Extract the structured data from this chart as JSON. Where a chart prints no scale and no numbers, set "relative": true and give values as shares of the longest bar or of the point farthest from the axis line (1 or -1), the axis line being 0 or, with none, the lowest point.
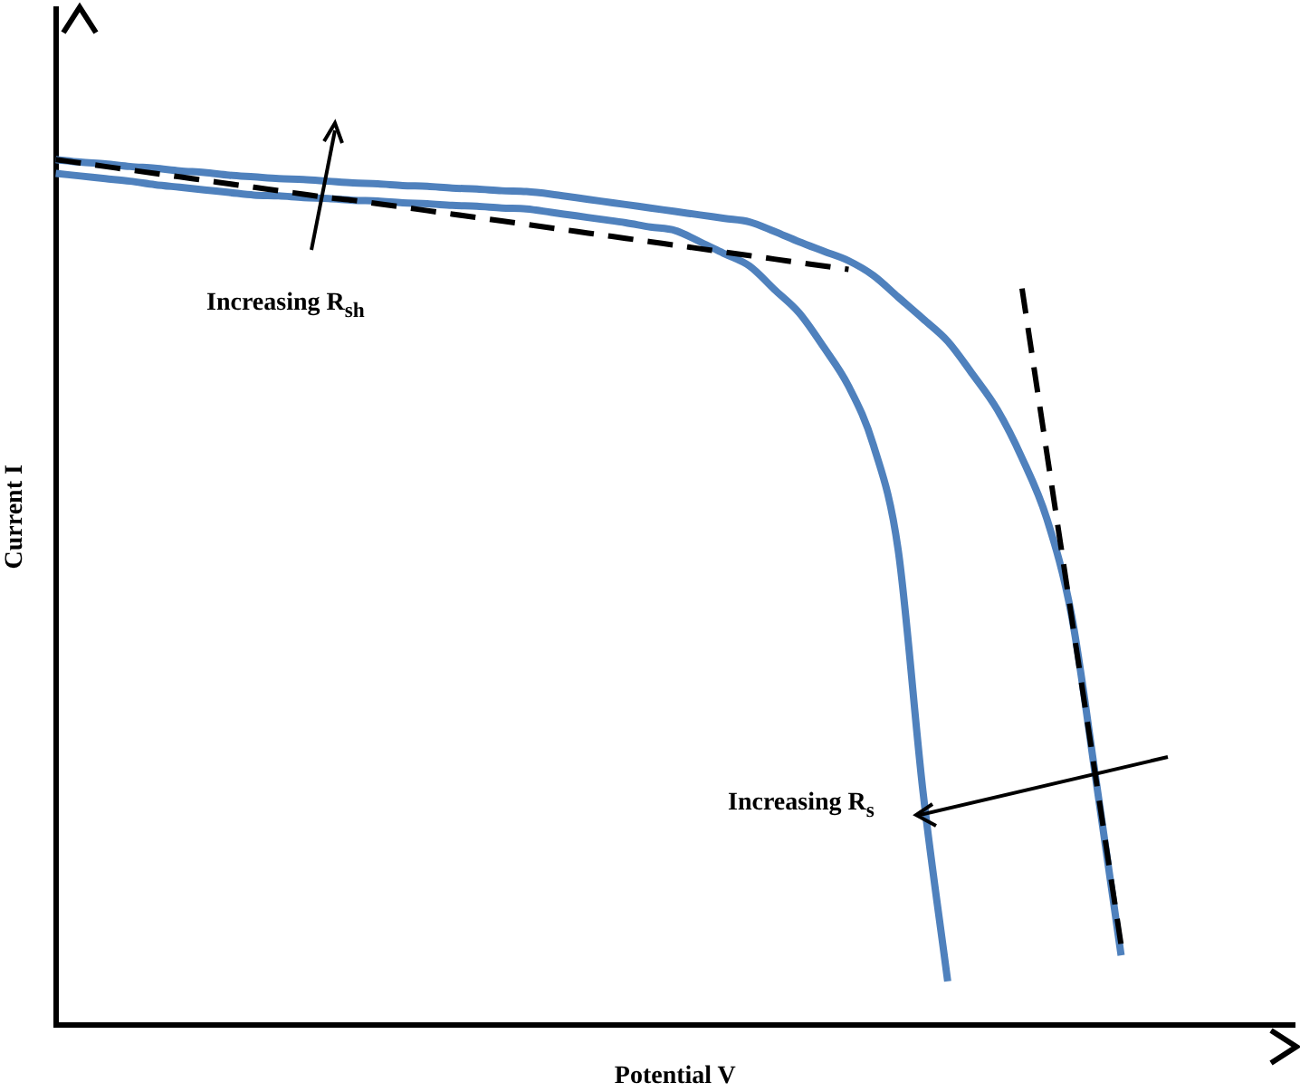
{
  "chart_data": {
    "type": "line",
    "relative": true,
    "xlabel": "Potential V",
    "ylabel": "Current I",
    "grid": false,
    "legend": false,
    "marker": "none",
    "categories": [
      null,
      null,
      null,
      null,
      null,
      null,
      null,
      null,
      null,
      null,
      null,
      null,
      null,
      null,
      null,
      null,
      null,
      null,
      null,
      null,
      null,
      null,
      null,
      null,
      null,
      null,
      null,
      null,
      null,
      null,
      null,
      null,
      null,
      null,
      null,
      null,
      null,
      null,
      null,
      null,
      null,
      null,
      null,
      null,
      null,
      null,
      null,
      null,
      null,
      null,
      null
    ],
    "annotations": [
      "Increasing R$_{sh}$",
      "Increasing R$_{s}$"
    ],
    "series": [
      {
        "color": "#4f81bd",
        "line_style": "solid",
        "values": [
          1.0,
          0.997,
          0.995,
          0.992,
          0.99,
          0.987,
          0.985,
          0.982,
          0.98,
          0.978,
          0.977,
          0.975,
          0.973,
          0.972,
          0.97,
          0.969,
          0.967,
          0.966,
          0.964,
          0.963,
          0.96,
          0.956,
          0.952,
          0.948,
          0.944,
          0.94,
          0.936,
          0.932,
          0.928,
          0.917,
          0.905,
          0.894,
          0.883,
          0.866,
          0.841,
          0.816,
          0.79,
          0.752,
          0.711,
          0.655,
          0.585,
          0.473,
          0.28,
          0.08,
          null,
          null,
          null,
          null,
          null,
          null,
          null
        ]
      },
      {
        "color": "#4f81bd",
        "line_style": "solid",
        "values": [
          0.984,
          0.981,
          0.978,
          0.975,
          0.971,
          0.968,
          0.965,
          0.962,
          0.959,
          0.958,
          0.956,
          0.955,
          0.953,
          0.952,
          0.95,
          0.949,
          0.947,
          0.946,
          0.944,
          0.943,
          0.939,
          0.935,
          0.931,
          0.927,
          0.922,
          0.918,
          0.905,
          0.891,
          0.877,
          0.85,
          0.823,
          0.783,
          0.738,
          0.67,
          0.549,
          0.27,
          0.05,
          null,
          null,
          null,
          null,
          null,
          null,
          null,
          null,
          null,
          null,
          null,
          null,
          null,
          null
        ]
      },
      {
        "color": "#000000",
        "line_style": "dashed",
        "values": [
          1.0,
          0.996,
          0.992,
          0.988,
          0.984,
          0.98,
          0.976,
          0.972,
          0.968,
          0.964,
          0.96,
          0.956,
          0.953,
          0.949,
          0.945,
          0.941,
          0.937,
          0.933,
          0.929,
          0.925,
          0.921,
          0.917,
          0.913,
          0.909,
          0.905,
          0.901,
          0.897,
          0.893,
          0.889,
          0.885,
          0.881,
          0.877,
          0.873,
          null,
          null,
          null,
          null,
          null,
          null,
          null,
          null,
          null,
          null,
          null,
          null,
          null,
          null,
          null,
          null,
          null,
          null
        ]
      },
      {
        "color": "#000000",
        "line_style": "dashed",
        "values": [
          null,
          null,
          null,
          null,
          null,
          null,
          null,
          null,
          null,
          null,
          null,
          null,
          null,
          null,
          null,
          null,
          null,
          null,
          null,
          null,
          null,
          null,
          null,
          null,
          null,
          null,
          null,
          null,
          null,
          null,
          null,
          null,
          null,
          null,
          null,
          null,
          null,
          null,
          null,
          0.851,
          0.661,
          0.471,
          0.281,
          0.092,
          null,
          null,
          null,
          null,
          null,
          null,
          null
        ]
      }
    ]
  }
}
